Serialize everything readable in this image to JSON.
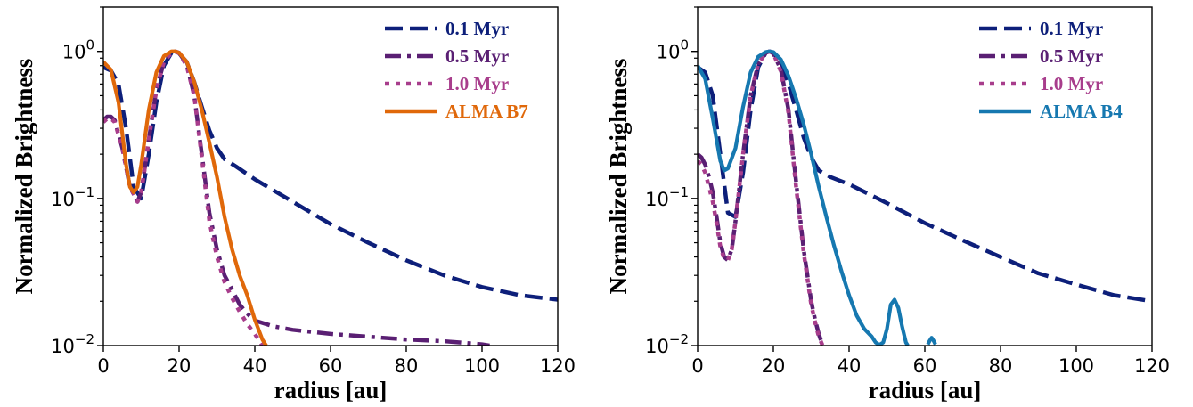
{
  "chart_data": [
    {
      "type": "line",
      "xlabel": "radius [au]",
      "ylabel": "Normalized Brightness",
      "xlim": [
        0,
        120
      ],
      "ylim": [
        0.01,
        2
      ],
      "yscale": "log",
      "xticks": [
        0,
        20,
        40,
        60,
        80,
        100,
        120
      ],
      "xtick_labels": [
        "0",
        "20",
        "40",
        "60",
        "80",
        "100",
        "120"
      ],
      "yticks": [
        {
          "value": 1,
          "base": "10",
          "exp": "0"
        },
        {
          "value": 0.1,
          "base": "10",
          "exp": "−1"
        },
        {
          "value": 0.01,
          "base": "10",
          "exp": "−2"
        }
      ],
      "legend_position": "top-right",
      "series": [
        {
          "name": "0.1 Myr",
          "color": "#0d1f7a",
          "dash": "dashed",
          "x": [
            0,
            2,
            4,
            6,
            8,
            10,
            12,
            14,
            16,
            18,
            19,
            20,
            22,
            24,
            26,
            28,
            30,
            32,
            35,
            40,
            50,
            60,
            70,
            80,
            90,
            100,
            110,
            120
          ],
          "y": [
            0.78,
            0.74,
            0.6,
            0.3,
            0.12,
            0.1,
            0.2,
            0.45,
            0.8,
            0.98,
            1.0,
            0.97,
            0.85,
            0.62,
            0.42,
            0.29,
            0.22,
            0.185,
            0.165,
            0.135,
            0.095,
            0.067,
            0.05,
            0.038,
            0.03,
            0.025,
            0.022,
            0.0205
          ]
        },
        {
          "name": "0.5 Myr",
          "color": "#5a1f73",
          "dash": "dashdot",
          "x": [
            0,
            1,
            2,
            3,
            5,
            7,
            9,
            10,
            12,
            14,
            16,
            18,
            19,
            20,
            22,
            24,
            26,
            28,
            30,
            32,
            34,
            36,
            38,
            40,
            45,
            50,
            60,
            70,
            80,
            90,
            100,
            102
          ],
          "y": [
            0.34,
            0.36,
            0.36,
            0.34,
            0.22,
            0.12,
            0.095,
            0.11,
            0.25,
            0.55,
            0.85,
            0.98,
            1.0,
            0.98,
            0.82,
            0.5,
            0.2,
            0.08,
            0.045,
            0.03,
            0.024,
            0.019,
            0.0165,
            0.0148,
            0.0135,
            0.0128,
            0.012,
            0.0115,
            0.011,
            0.0107,
            0.0102,
            0.01
          ]
        },
        {
          "name": "1.0 Myr",
          "color": "#a83d8c",
          "dash": "dotted",
          "x": [
            0,
            1,
            2,
            3,
            5,
            7,
            9,
            10,
            12,
            14,
            16,
            18,
            19,
            20,
            22,
            24,
            26,
            28,
            30,
            32,
            34,
            36,
            38,
            40,
            42
          ],
          "y": [
            0.33,
            0.35,
            0.35,
            0.33,
            0.22,
            0.12,
            0.095,
            0.11,
            0.25,
            0.55,
            0.85,
            0.98,
            1.0,
            0.97,
            0.8,
            0.5,
            0.19,
            0.07,
            0.04,
            0.027,
            0.021,
            0.017,
            0.014,
            0.012,
            0.01
          ]
        },
        {
          "name": "ALMA B7",
          "color": "#e0680a",
          "dash": "solid",
          "x": [
            0,
            2,
            4,
            6,
            7,
            8,
            9,
            10,
            12,
            14,
            16,
            18,
            19,
            20,
            22,
            24,
            26,
            28,
            30,
            32,
            34,
            36,
            38,
            40,
            42,
            43
          ],
          "y": [
            0.85,
            0.75,
            0.45,
            0.17,
            0.12,
            0.11,
            0.12,
            0.17,
            0.4,
            0.72,
            0.93,
            1.0,
            1.0,
            0.98,
            0.85,
            0.62,
            0.4,
            0.24,
            0.14,
            0.075,
            0.045,
            0.03,
            0.022,
            0.015,
            0.011,
            0.01
          ]
        }
      ]
    },
    {
      "type": "line",
      "xlabel": "radius [au]",
      "ylabel": "Normalized Brightness",
      "xlim": [
        0,
        120
      ],
      "ylim": [
        0.01,
        2
      ],
      "yscale": "log",
      "xticks": [
        0,
        20,
        40,
        60,
        80,
        100,
        120
      ],
      "xtick_labels": [
        "0",
        "20",
        "40",
        "60",
        "80",
        "100",
        "120"
      ],
      "yticks": [
        {
          "value": 1,
          "base": "10",
          "exp": "0"
        },
        {
          "value": 0.1,
          "base": "10",
          "exp": "−1"
        },
        {
          "value": 0.01,
          "base": "10",
          "exp": "−2"
        }
      ],
      "legend_position": "top-right",
      "series": [
        {
          "name": "0.1 Myr",
          "color": "#0d1f7a",
          "dash": "dashed",
          "x": [
            0,
            2,
            4,
            6,
            8,
            10,
            12,
            14,
            16,
            18,
            19,
            20,
            22,
            24,
            26,
            28,
            30,
            32,
            35,
            40,
            50,
            60,
            70,
            80,
            90,
            100,
            110,
            120
          ],
          "y": [
            0.78,
            0.72,
            0.5,
            0.2,
            0.08,
            0.075,
            0.15,
            0.4,
            0.78,
            0.98,
            1.0,
            0.97,
            0.85,
            0.6,
            0.4,
            0.26,
            0.19,
            0.155,
            0.14,
            0.125,
            0.093,
            0.068,
            0.052,
            0.04,
            0.031,
            0.026,
            0.022,
            0.02
          ]
        },
        {
          "name": "0.5 Myr",
          "color": "#5a1f73",
          "dash": "dashdot",
          "x": [
            0,
            1,
            2,
            3,
            4,
            5,
            6,
            7,
            8,
            9,
            10,
            12,
            14,
            16,
            18,
            19,
            20,
            22,
            24,
            26,
            28,
            30,
            31,
            32,
            33
          ],
          "y": [
            0.2,
            0.19,
            0.17,
            0.14,
            0.11,
            0.075,
            0.05,
            0.04,
            0.038,
            0.045,
            0.07,
            0.2,
            0.5,
            0.82,
            0.98,
            1.0,
            0.97,
            0.75,
            0.4,
            0.13,
            0.045,
            0.02,
            0.015,
            0.012,
            0.01
          ]
        },
        {
          "name": "1.0 Myr",
          "color": "#a83d8c",
          "dash": "dotted",
          "x": [
            0,
            1,
            2,
            3,
            4,
            5,
            6,
            7,
            8,
            9,
            10,
            12,
            14,
            16,
            18,
            19,
            20,
            22,
            24,
            26,
            28,
            30,
            31,
            32,
            33
          ],
          "y": [
            0.18,
            0.17,
            0.15,
            0.12,
            0.095,
            0.068,
            0.047,
            0.039,
            0.038,
            0.045,
            0.07,
            0.2,
            0.5,
            0.82,
            0.98,
            1.0,
            0.97,
            0.73,
            0.38,
            0.12,
            0.043,
            0.019,
            0.0145,
            0.0115,
            0.01
          ]
        },
        {
          "name": "ALMA B4",
          "color": "#1678b0",
          "dash": "solid",
          "x": [
            0,
            2,
            4,
            6,
            7,
            8,
            10,
            12,
            14,
            16,
            18,
            19,
            20,
            22,
            24,
            26,
            28,
            30,
            32,
            34,
            36,
            38,
            40,
            42,
            44,
            46,
            47,
            48,
            49,
            50,
            51,
            52,
            53,
            54,
            55,
            55.5
          ],
          "y": [
            0.8,
            0.65,
            0.35,
            0.18,
            0.155,
            0.16,
            0.22,
            0.42,
            0.72,
            0.92,
            0.99,
            1.0,
            0.99,
            0.88,
            0.68,
            0.48,
            0.32,
            0.2,
            0.12,
            0.075,
            0.048,
            0.032,
            0.022,
            0.016,
            0.013,
            0.0115,
            0.0105,
            0.0101,
            0.0105,
            0.013,
            0.019,
            0.0205,
            0.018,
            0.0135,
            0.0105,
            0.01
          ]
        },
        {
          "name": "",
          "color": "#1678b0",
          "dash": "solid",
          "legend": false,
          "x": [
            60.8,
            61.3,
            61.8,
            62.3,
            62.8
          ],
          "y": [
            0.0102,
            0.0108,
            0.0113,
            0.0108,
            0.0102
          ]
        }
      ]
    }
  ]
}
